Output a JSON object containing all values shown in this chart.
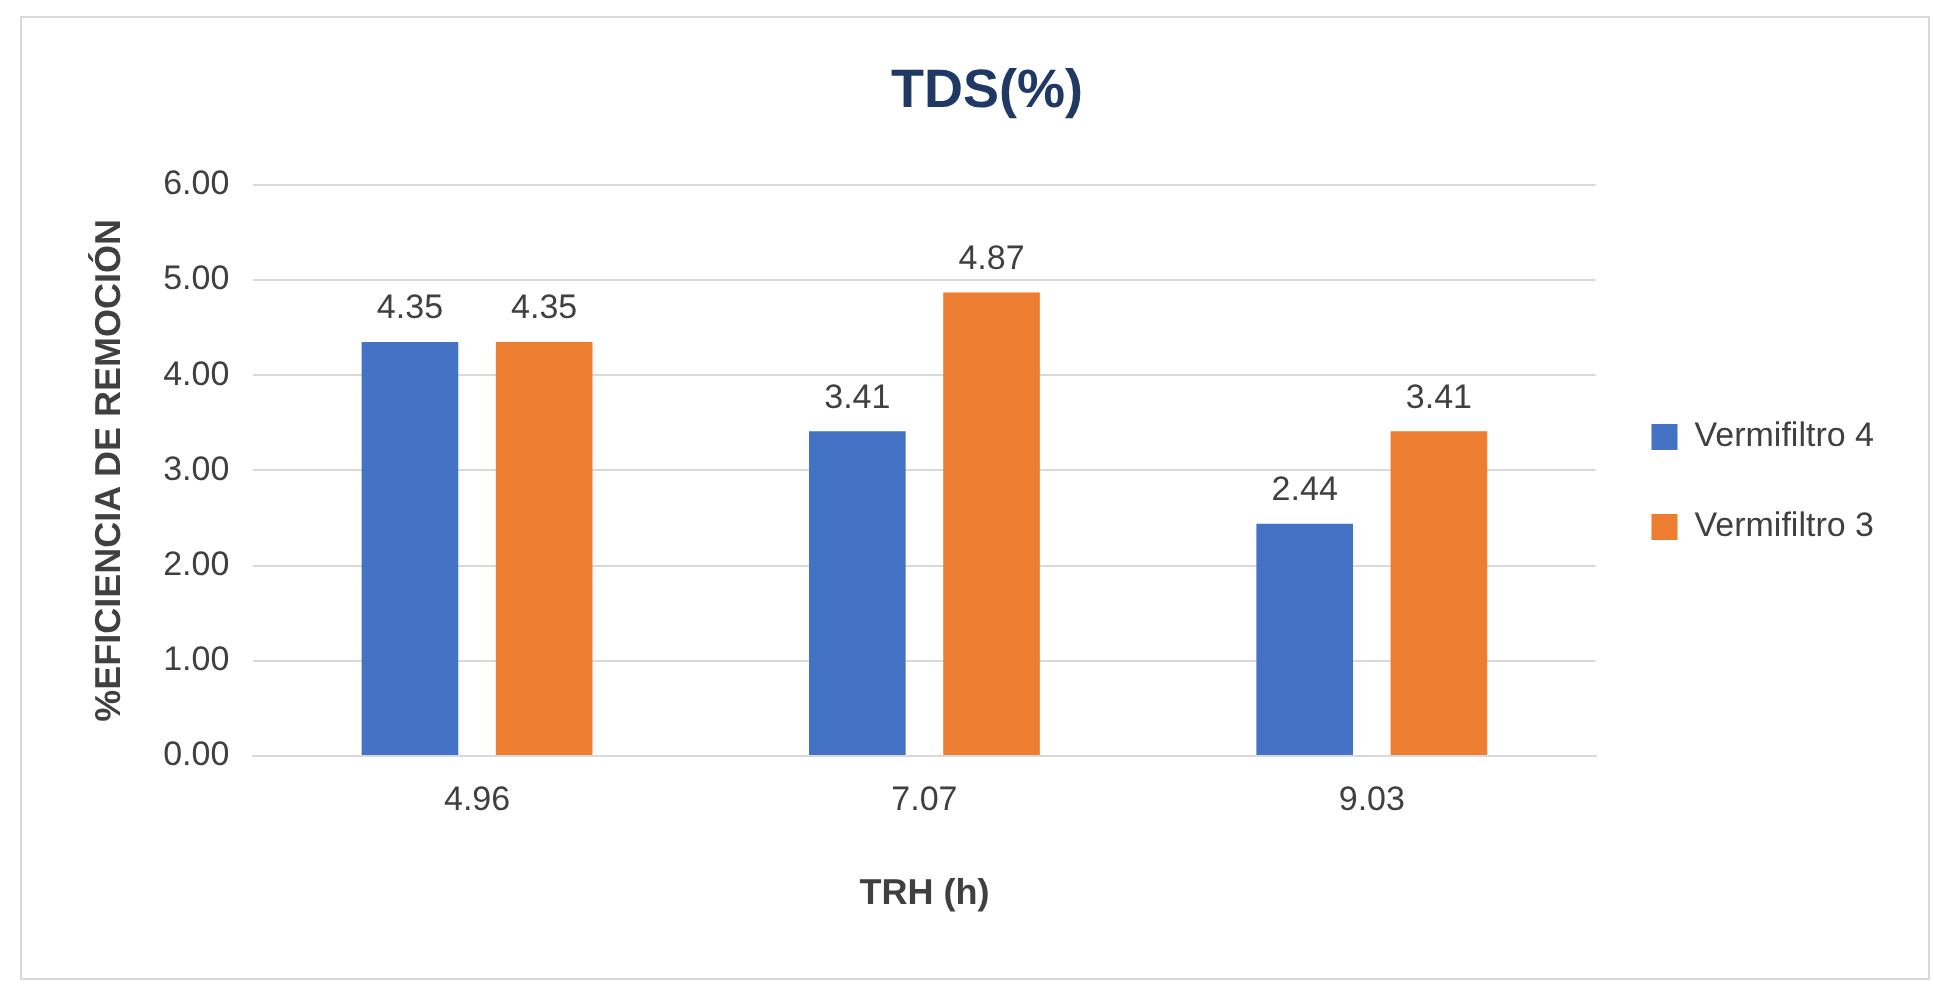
{
  "chart_data": {
    "type": "bar",
    "title": "TDS(%)",
    "xlabel": "TRH (h)",
    "ylabel": "%EFICIENCIA DE REMOCIÓN",
    "categories": [
      "4.96",
      "7.07",
      "9.03"
    ],
    "series": [
      {
        "name": "Vermifiltro 4",
        "color": "#4472c4",
        "values": [
          4.35,
          3.41,
          2.44
        ]
      },
      {
        "name": "Vermifiltro 3",
        "color": "#ed7d31",
        "values": [
          4.35,
          4.87,
          3.41
        ]
      }
    ],
    "ylim": [
      0,
      6
    ],
    "yticks": [
      {
        "value": 0,
        "label": "0.00"
      },
      {
        "value": 1,
        "label": "1.00"
      },
      {
        "value": 2,
        "label": "2.00"
      },
      {
        "value": 3,
        "label": "3.00"
      },
      {
        "value": 4,
        "label": "4.00"
      },
      {
        "value": 5,
        "label": "5.00"
      },
      {
        "value": 6,
        "label": "6.00"
      }
    ],
    "grid": "y",
    "legend": "right",
    "data_labels": true
  }
}
